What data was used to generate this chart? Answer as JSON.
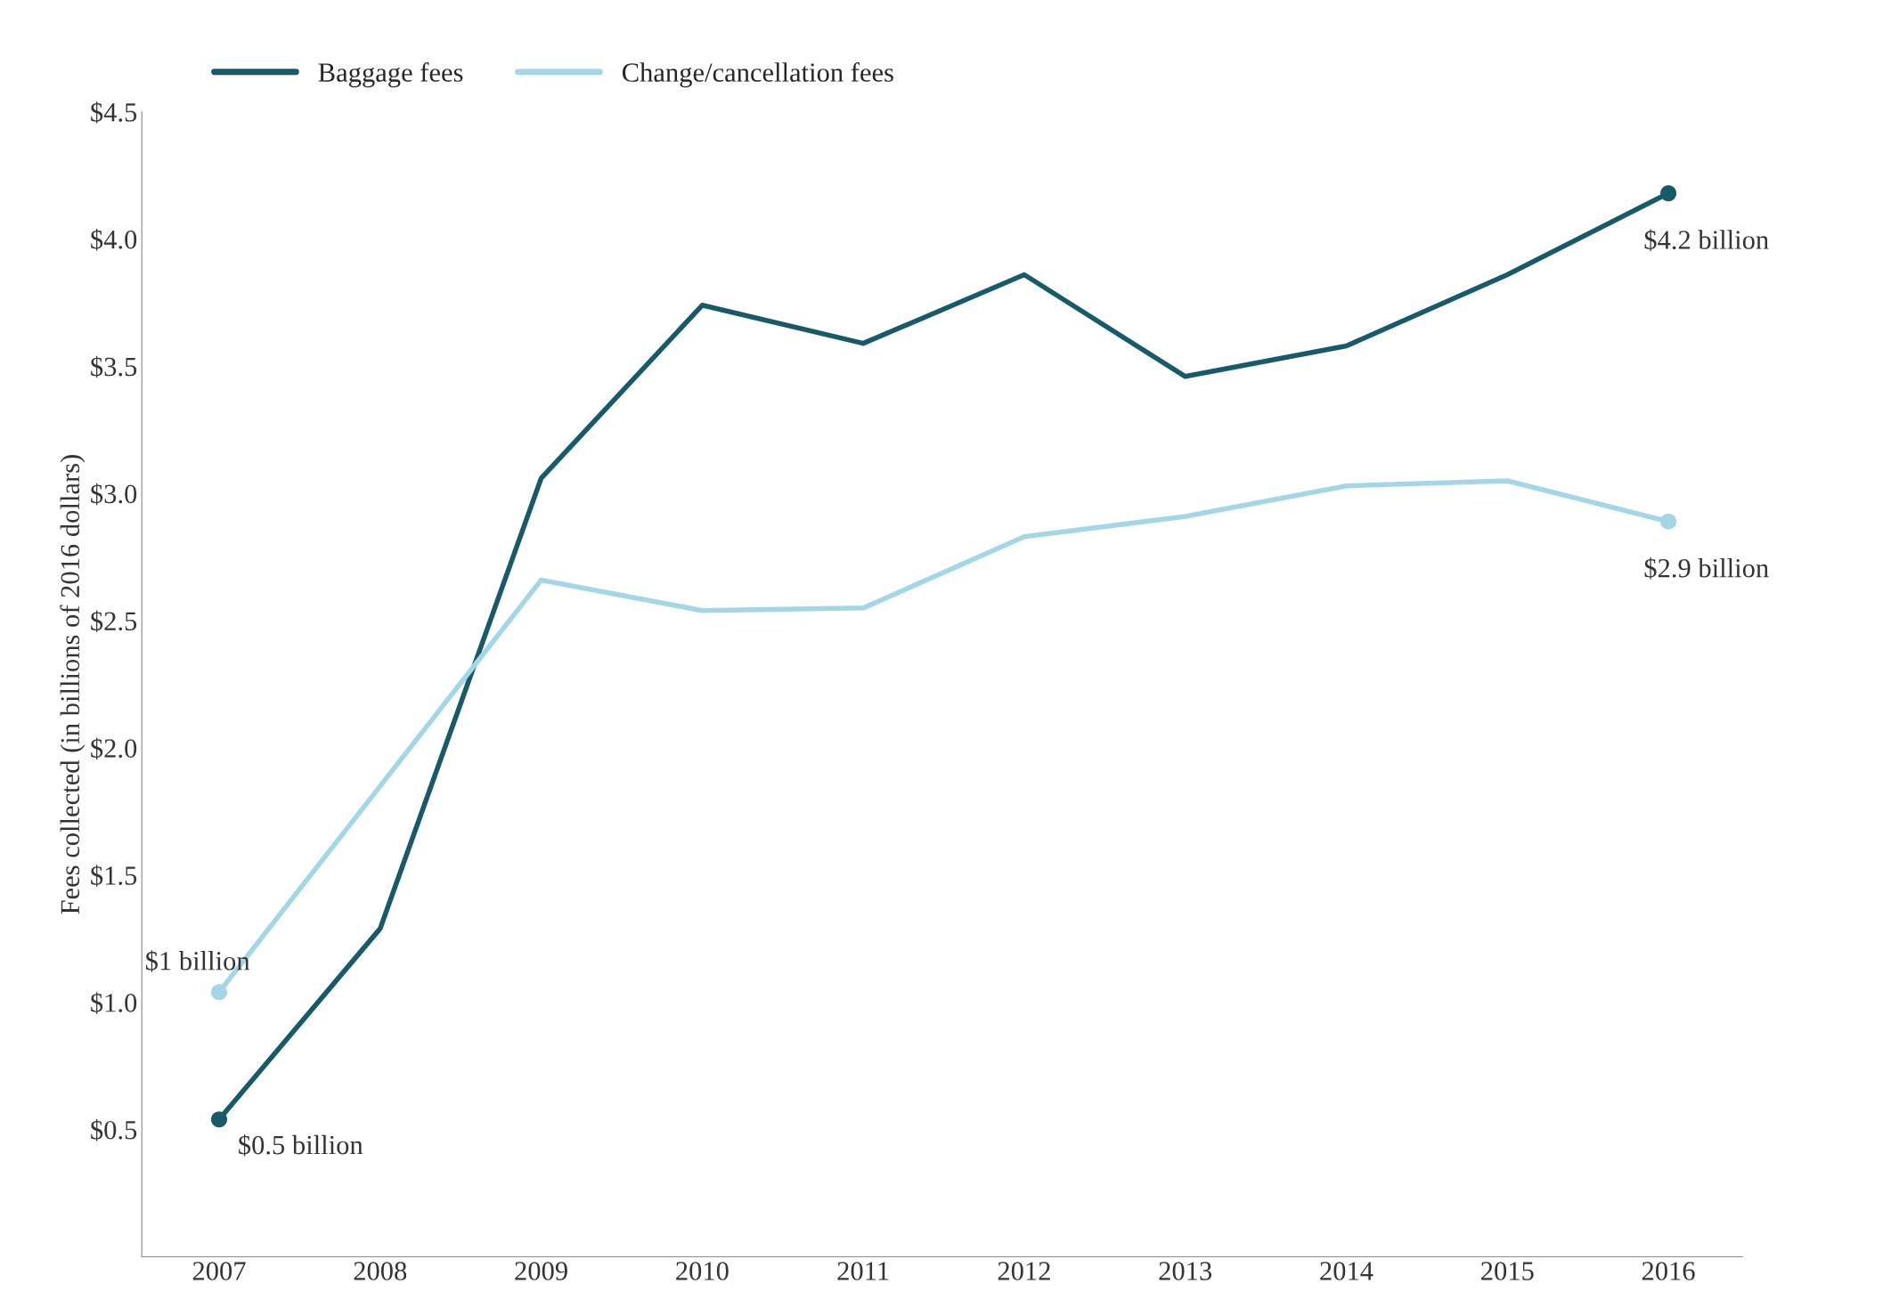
{
  "chart_data": {
    "type": "line",
    "ylabel": "Fees collected (in billions of 2016 dollars)",
    "categories": [
      "2007",
      "2008",
      "2009",
      "2010",
      "2011",
      "2012",
      "2013",
      "2014",
      "2015",
      "2016"
    ],
    "series": [
      {
        "name": "Baggage fees",
        "color": "#175a69",
        "values": [
          0.54,
          1.29,
          3.06,
          3.74,
          3.59,
          3.86,
          3.46,
          3.58,
          3.86,
          4.18
        ]
      },
      {
        "name": "Change/cancellation fees",
        "color": "#a3d7e8",
        "values": [
          1.04,
          1.85,
          2.66,
          2.54,
          2.55,
          2.83,
          2.91,
          3.03,
          3.05,
          2.89
        ]
      }
    ],
    "ylim": [
      0,
      4.5
    ],
    "yticks": [
      {
        "value": 0.5,
        "label": "$0.5"
      },
      {
        "value": 1.0,
        "label": "$1.0"
      },
      {
        "value": 1.5,
        "label": "$1.5"
      },
      {
        "value": 2.0,
        "label": "$2.0"
      },
      {
        "value": 2.5,
        "label": "$2.5"
      },
      {
        "value": 3.0,
        "label": "$3.0"
      },
      {
        "value": 3.5,
        "label": "$3.5"
      },
      {
        "value": 4.0,
        "label": "$4.0"
      },
      {
        "value": 4.5,
        "label": "$4.5"
      }
    ],
    "annotations": [
      {
        "text": "$0.5 billion",
        "x": "2007",
        "y": 0.54
      },
      {
        "text": "$1 billion",
        "x": "2007",
        "y": 1.04
      },
      {
        "text": "$4.2 billion",
        "x": "2016",
        "y": 4.18
      },
      {
        "text": "$2.9 billion",
        "x": "2016",
        "y": 2.89
      }
    ],
    "grid": false,
    "legend": "top left",
    "line_style": "solid"
  }
}
